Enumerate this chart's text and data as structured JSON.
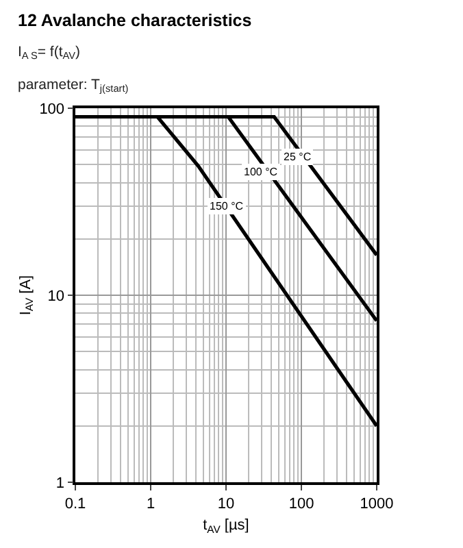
{
  "chart_data": {
    "type": "line",
    "title": "12 Avalanche characteristics",
    "subtitle": "I$_{A S}$= f(t$_{AV}$)",
    "xlabel": "t$_{AV}$ [µs]",
    "ylabel": "I$_{AV}$ [A]",
    "log": "xy",
    "xlim": [
      0.1,
      1000
    ],
    "ylim": [
      1,
      100
    ],
    "xticks": [
      0.1,
      1,
      10,
      100,
      1000
    ],
    "yticks": [
      1,
      10,
      100
    ],
    "grid": true,
    "marker": "none",
    "line_style": "solid",
    "series": [
      {
        "color": "#000000",
        "x": [
          0.1,
          43.5,
          1000
        ],
        "values": [
          90,
          90,
          16.4
        ]
      },
      {
        "color": "#000000",
        "x": [
          0.1,
          10.7,
          1000
        ],
        "values": [
          90,
          90,
          7.3
        ]
      },
      {
        "color": "#000000",
        "x": [
          0.1,
          1.23,
          4.3,
          1000
        ],
        "values": [
          90,
          90,
          49,
          2.0
        ]
      }
    ],
    "annotations": [
      "parameter: T$_{j(start)}$",
      {
        "text": "25 °C",
        "x": 87,
        "y": 55
      },
      {
        "text": "100 °C",
        "x": 28.5,
        "y": 46
      },
      {
        "text": "150 °C",
        "x": 10,
        "y": 30
      }
    ]
  }
}
